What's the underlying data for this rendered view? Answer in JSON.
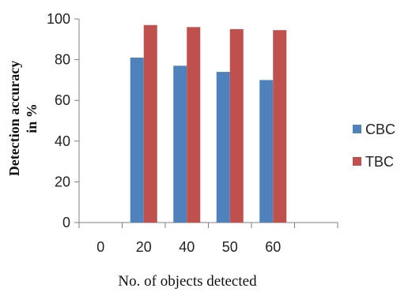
{
  "chart_data": {
    "type": "bar",
    "categories": [
      "0",
      "20",
      "40",
      "50",
      "60",
      ""
    ],
    "series": [
      {
        "name": "CBC",
        "color": "#4F81BD",
        "values": [
          null,
          81,
          77,
          74,
          70,
          null
        ]
      },
      {
        "name": "TBC",
        "color": "#C0504D",
        "values": [
          null,
          97,
          96,
          95,
          94.5,
          null
        ]
      }
    ],
    "title": "",
    "xlabel": "No. of objects detected",
    "ylabel_lines": [
      "Detection accuracy",
      "in %"
    ],
    "ylim": [
      0,
      100
    ],
    "yticks": [
      "0",
      "20",
      "40",
      "60",
      "80",
      "100"
    ],
    "grid": false,
    "legend_position": "right"
  }
}
